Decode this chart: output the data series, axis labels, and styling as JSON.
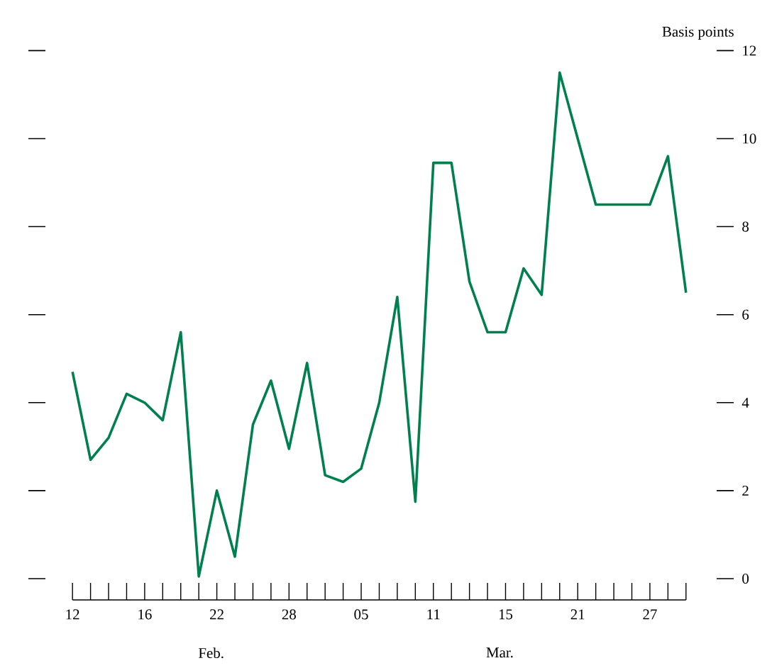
{
  "chart_data": {
    "type": "line",
    "ylabel": "Basis points",
    "categories": [
      "12",
      null,
      null,
      null,
      "16",
      null,
      null,
      null,
      "22",
      null,
      null,
      null,
      "28",
      null,
      null,
      null,
      "05",
      null,
      null,
      null,
      "11",
      null,
      null,
      null,
      "15",
      null,
      null,
      null,
      "21",
      null,
      null,
      null,
      "27",
      null,
      null
    ],
    "values": [
      4.7,
      2.7,
      3.2,
      4.2,
      4.0,
      3.6,
      5.6,
      0.05,
      2.0,
      0.5,
      3.5,
      4.5,
      2.95,
      4.9,
      2.35,
      2.2,
      2.5,
      4.0,
      6.4,
      1.75,
      9.45,
      9.45,
      6.75,
      5.6,
      5.6,
      7.05,
      6.45,
      11.5,
      10.0,
      8.5,
      8.5,
      8.5,
      8.5,
      9.6,
      6.5
    ],
    "color": "#007f4f",
    "ylim": [
      0,
      12
    ],
    "yticks": [
      0,
      2,
      4,
      6,
      8,
      10,
      12
    ],
    "annotations": [
      "Feb.",
      "Mar."
    ]
  }
}
